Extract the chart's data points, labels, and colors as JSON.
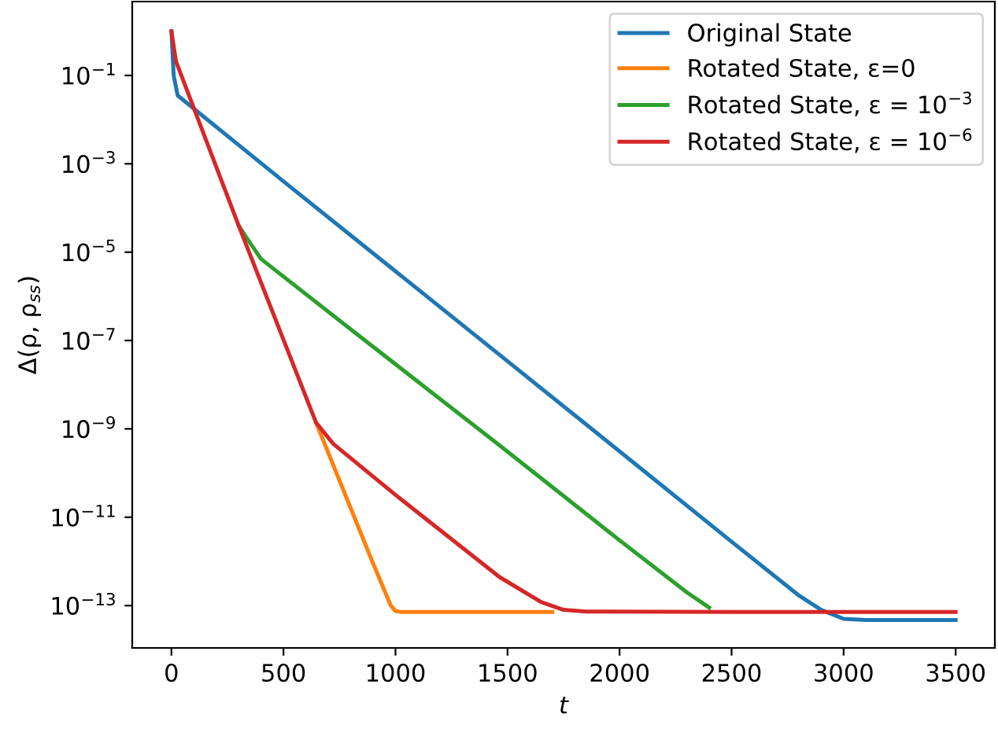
{
  "chart_data": {
    "type": "line",
    "xlabel": "t",
    "ylabel": "Δ(ρ, ρ$_{ss}$)",
    "log": "y",
    "grid": false,
    "legend": "top right",
    "marker": "none",
    "line_style": "solid",
    "xlim": [
      -175,
      3675
    ],
    "xticks": [
      0,
      500,
      1000,
      1500,
      2000,
      2500,
      3000,
      3500
    ],
    "ylim": [
      1.1e-14,
      4.7
    ],
    "yticks": [
      {
        "value": 0.1,
        "label": "10$^{−1}$"
      },
      {
        "value": 0.001,
        "label": "10$^{−3}$"
      },
      {
        "value": 1e-05,
        "label": "10$^{−5}$"
      },
      {
        "value": 1e-07,
        "label": "10$^{−7}$"
      },
      {
        "value": 1e-09,
        "label": "10$^{−9}$"
      },
      {
        "value": 1e-11,
        "label": "10$^{−11}$"
      },
      {
        "value": 1e-13,
        "label": "10$^{−13}$"
      }
    ],
    "series": [
      {
        "name": "Original State",
        "color": "#1f77b4",
        "x": [
          0,
          10,
          28,
          500,
          1000,
          1500,
          2000,
          2500,
          2800,
          2900,
          3000,
          3100,
          3500
        ],
        "values": [
          1.0,
          0.1,
          0.035,
          0.0004,
          3.7e-06,
          3.4e-08,
          3.1e-10,
          2.8e-12,
          1.7e-13,
          8e-14,
          5e-14,
          4.7e-14,
          4.7e-14
        ]
      },
      {
        "name": "Rotated State, ε=0",
        "color": "#ff7f0e",
        "x": [
          645,
          900,
          979,
          1000,
          1020,
          1300,
          1700
        ],
        "values": [
          1.4e-09,
          9e-13,
          1e-13,
          7.5e-14,
          7.2e-14,
          7.2e-14,
          7.2e-14
        ]
      },
      {
        "name": "Rotated State, ε = 10$^{−3}$",
        "color": "#2ca02c",
        "x": [
          300,
          333,
          400,
          800,
          1465,
          2000,
          2300,
          2400
        ],
        "values": [
          4e-05,
          2.2e-05,
          7e-06,
          1.8e-07,
          4.2e-10,
          3e-12,
          2e-13,
          9e-14
        ]
      },
      {
        "name": "Rotated State, ε = 10$^{−6}$",
        "color": "#d62728",
        "x": [
          0,
          20,
          300,
          645,
          722,
          1000,
          1465,
          1650,
          1750,
          1850,
          2500,
          3500
        ],
        "values": [
          1.0,
          0.21,
          4e-05,
          1.4e-09,
          4.6e-10,
          3.2e-11,
          4.4e-13,
          1.2e-13,
          8e-14,
          7.3e-14,
          7.2e-14,
          7.2e-14
        ]
      }
    ]
  }
}
